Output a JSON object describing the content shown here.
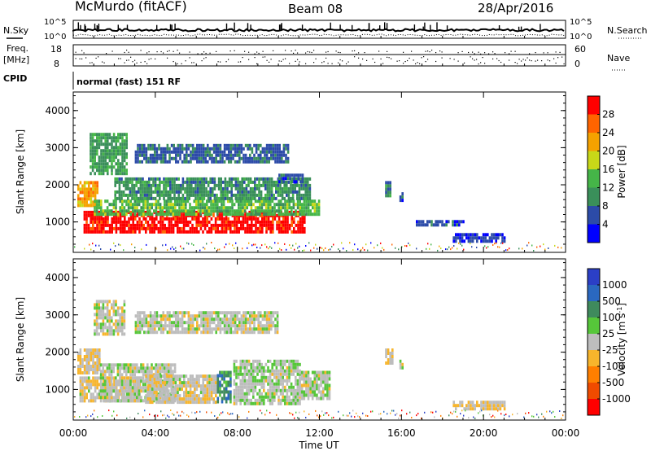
{
  "header": {
    "station": "McMurdo (fitACF)",
    "beam": "Beam 08",
    "date": "28/Apr/2016"
  },
  "summary_panels": {
    "nsky_label": "N.Sky",
    "nsearch_label": "N.Search",
    "log_top": "10^5",
    "log_bottom": "10^0",
    "freq_label_1": "Freq.",
    "freq_label_2": "[MHz]",
    "freq_ticks": [
      "18",
      "8"
    ],
    "nave_label": "Nave",
    "nave_ticks": [
      "60",
      "0"
    ],
    "cpid_label": "CPID",
    "cpid_text": "normal (fast) 151 RF"
  },
  "colors": {
    "power_scale": [
      "#0000ff",
      "#2c4ba8",
      "#3a8f5a",
      "#45b548",
      "#c8d818",
      "#f5a200",
      "#ff6400",
      "#ff0000"
    ],
    "velocity_scale": [
      "#2b3fc6",
      "#2a68c0",
      "#3f8a5d",
      "#56c63a",
      "#bdbdbd",
      "#f7b52c",
      "#ff7f00",
      "#f04b00",
      "#ff0000"
    ]
  },
  "chart_data": [
    {
      "type": "heatmap",
      "panel": "power",
      "ylabel": "Slant Range [km]",
      "ylim": [
        180,
        4500
      ],
      "yticks": [
        "4000",
        "3000",
        "2000",
        "1000"
      ],
      "xlim": [
        "00:00",
        "24:00"
      ],
      "xticks": [
        "00:00",
        "04:00",
        "08:00",
        "12:00",
        "16:00",
        "20:00",
        "00:00"
      ],
      "colorbar": {
        "label": "Power [dB]",
        "ticks": [
          "28",
          "24",
          "20",
          "16",
          "12",
          "8",
          "4"
        ],
        "range": [
          0,
          32
        ]
      },
      "blobs": [
        {
          "t0": 0.5,
          "t1": 11.3,
          "r0": 700,
          "r1": 1300,
          "value": 30
        },
        {
          "t0": 0.2,
          "t1": 1.2,
          "r0": 1450,
          "r1": 2100,
          "value": 22
        },
        {
          "t0": 1.0,
          "t1": 12.0,
          "r0": 1200,
          "r1": 1600,
          "value": 14
        },
        {
          "t0": 2.0,
          "t1": 11.5,
          "r0": 1600,
          "r1": 2200,
          "value": 10
        },
        {
          "t0": 0.8,
          "t1": 2.6,
          "r0": 2300,
          "r1": 3400,
          "value": 11
        },
        {
          "t0": 3.0,
          "t1": 10.5,
          "r0": 2600,
          "r1": 3100,
          "value": 7
        },
        {
          "t0": 10.0,
          "t1": 11.2,
          "r0": 2100,
          "r1": 2300,
          "value": 6
        },
        {
          "t0": 15.2,
          "t1": 15.5,
          "r0": 1700,
          "r1": 2100,
          "value": 10
        },
        {
          "t0": 15.9,
          "t1": 16.1,
          "r0": 1600,
          "r1": 1800,
          "value": 6
        },
        {
          "t0": 16.7,
          "t1": 19.0,
          "r0": 950,
          "r1": 1050,
          "value": 6
        },
        {
          "t0": 18.5,
          "t1": 21.0,
          "r0": 500,
          "r1": 700,
          "value": 5
        }
      ]
    },
    {
      "type": "heatmap",
      "panel": "velocity",
      "ylabel": "Slant Range [km]",
      "ylim": [
        180,
        4500
      ],
      "yticks": [
        "4000",
        "3000",
        "2000",
        "1000"
      ],
      "xlim": [
        "00:00",
        "24:00"
      ],
      "xticks": [
        "00:00",
        "04:00",
        "08:00",
        "12:00",
        "16:00",
        "20:00",
        "00:00"
      ],
      "xlabel": "Time UT",
      "colorbar": {
        "label": "Velocity [m s",
        "label_sup": "-1",
        "label_end": "]",
        "ticks": [
          "1000",
          "500",
          "100",
          "25",
          "-25",
          "-100",
          "-500",
          "-1000"
        ],
        "range": [
          -1500,
          1500
        ]
      },
      "blobs": [
        {
          "t0": 0.3,
          "t1": 3.2,
          "r0": 700,
          "r1": 1350,
          "value": -80
        },
        {
          "t0": 0.2,
          "t1": 1.3,
          "r0": 1450,
          "r1": 2100,
          "value": -120
        },
        {
          "t0": 1.3,
          "t1": 5.0,
          "r0": 700,
          "r1": 1700,
          "value": 60
        },
        {
          "t0": 3.5,
          "t1": 7.0,
          "r0": 700,
          "r1": 1400,
          "value": -70
        },
        {
          "t0": 7.0,
          "t1": 7.7,
          "r0": 700,
          "r1": 1500,
          "value": 700
        },
        {
          "t0": 7.8,
          "t1": 11.0,
          "r0": 600,
          "r1": 1800,
          "value": 80
        },
        {
          "t0": 11.0,
          "t1": 12.5,
          "r0": 800,
          "r1": 1500,
          "value": 60
        },
        {
          "t0": 1.0,
          "t1": 2.5,
          "r0": 2500,
          "r1": 3400,
          "value": 0
        },
        {
          "t0": 3.0,
          "t1": 10.0,
          "r0": 2500,
          "r1": 3100,
          "value": 20
        },
        {
          "t0": 15.2,
          "t1": 15.6,
          "r0": 1700,
          "r1": 2100,
          "value": -120
        },
        {
          "t0": 15.9,
          "t1": 16.1,
          "r0": 1600,
          "r1": 1800,
          "value": 50
        },
        {
          "t0": 18.5,
          "t1": 21.0,
          "r0": 500,
          "r1": 700,
          "value": -120
        }
      ]
    }
  ]
}
